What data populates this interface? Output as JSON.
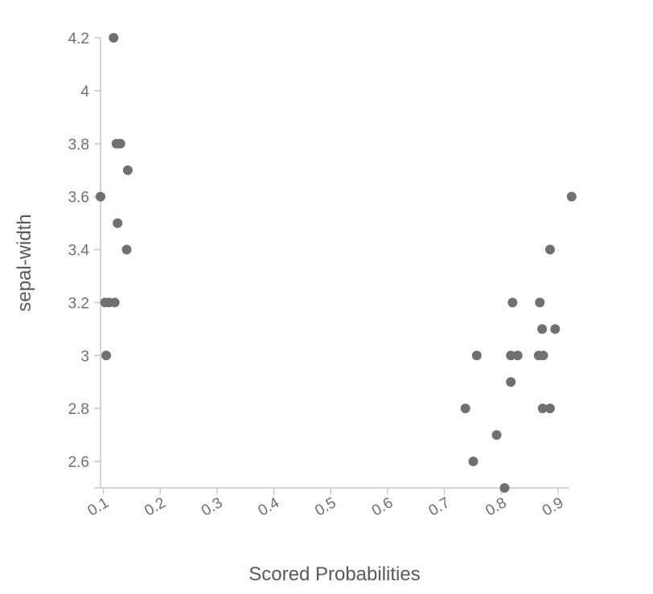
{
  "chart_data": {
    "type": "scatter",
    "xlabel": "Scored Probabilities",
    "ylabel": "sepal-width",
    "xlim": [
      0.095,
      0.92
    ],
    "ylim": [
      2.5,
      4.2
    ],
    "x_ticks": [
      0.1,
      0.2,
      0.3,
      0.4,
      0.5,
      0.6,
      0.7,
      0.8,
      0.9
    ],
    "y_ticks": [
      2.6,
      2.8,
      3,
      3.2,
      3.4,
      3.6,
      3.8,
      4,
      4.2
    ],
    "x_tick_labels": [
      "0.1",
      "0.2",
      "0.3",
      "0.4",
      "0.5",
      "0.6",
      "0.7",
      "0.8",
      "0.9"
    ],
    "y_tick_labels": [
      "2.6",
      "2.8",
      "3",
      "3.2",
      "3.4",
      "3.6",
      "3.8",
      "4",
      "4.2"
    ],
    "grid": false,
    "point_color": "#707070",
    "series": [
      {
        "points": [
          {
            "x": 0.118,
            "y": 4.2
          },
          {
            "x": 0.123,
            "y": 3.8
          },
          {
            "x": 0.13,
            "y": 3.8
          },
          {
            "x": 0.143,
            "y": 3.7
          },
          {
            "x": 0.095,
            "y": 3.6
          },
          {
            "x": 0.125,
            "y": 3.5
          },
          {
            "x": 0.141,
            "y": 3.4
          },
          {
            "x": 0.103,
            "y": 3.2
          },
          {
            "x": 0.11,
            "y": 3.2
          },
          {
            "x": 0.12,
            "y": 3.2
          },
          {
            "x": 0.105,
            "y": 3.0
          },
          {
            "x": 0.924,
            "y": 3.6
          },
          {
            "x": 0.886,
            "y": 3.4
          },
          {
            "x": 0.82,
            "y": 3.2
          },
          {
            "x": 0.868,
            "y": 3.2
          },
          {
            "x": 0.872,
            "y": 3.1
          },
          {
            "x": 0.895,
            "y": 3.1
          },
          {
            "x": 0.757,
            "y": 3.0
          },
          {
            "x": 0.817,
            "y": 3.0
          },
          {
            "x": 0.829,
            "y": 3.0
          },
          {
            "x": 0.866,
            "y": 3.0
          },
          {
            "x": 0.874,
            "y": 3.0
          },
          {
            "x": 0.817,
            "y": 2.9
          },
          {
            "x": 0.737,
            "y": 2.8
          },
          {
            "x": 0.873,
            "y": 2.8
          },
          {
            "x": 0.886,
            "y": 2.8
          },
          {
            "x": 0.792,
            "y": 2.7
          },
          {
            "x": 0.751,
            "y": 2.6
          },
          {
            "x": 0.806,
            "y": 2.5
          }
        ]
      }
    ]
  }
}
